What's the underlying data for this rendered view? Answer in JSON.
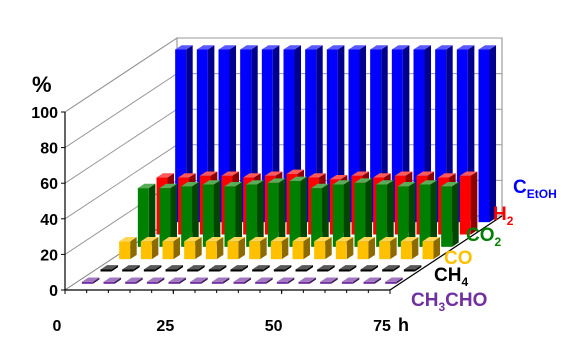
{
  "chart_data": {
    "type": "bar",
    "style": "3d-depth",
    "title": "",
    "ylabel": "%",
    "xlabel": "",
    "x_unit_label": "h",
    "x_ticks": [
      "0",
      "25",
      "50",
      "75"
    ],
    "y_ticks": [
      "0",
      "20",
      "40",
      "60",
      "80",
      "100"
    ],
    "ylim": [
      0,
      100
    ],
    "xlim": [
      0,
      75
    ],
    "grid": true,
    "legend_placement": "right, as series labels along depth axis",
    "x": [
      3,
      8,
      13,
      18,
      23,
      28,
      33,
      38,
      43,
      48,
      53,
      58,
      63,
      68,
      73
    ],
    "series": [
      {
        "name": "CH3CHO",
        "color": "#7030A0",
        "values": [
          1,
          1,
          1,
          1,
          1,
          1,
          1,
          1,
          1,
          1,
          1,
          1,
          1,
          1,
          1
        ]
      },
      {
        "name": "CH4",
        "color": "#000000",
        "values": [
          1,
          1,
          1,
          1,
          1,
          1,
          1,
          1,
          1,
          1,
          1,
          1,
          1,
          1,
          1
        ]
      },
      {
        "name": "CO",
        "color": "#FFC000",
        "values": [
          10,
          10,
          10,
          10,
          10,
          10,
          10,
          10,
          10,
          10,
          10,
          10,
          10,
          10,
          10
        ]
      },
      {
        "name": "CO2",
        "color": "#008000",
        "values": [
          33,
          33,
          34,
          35,
          34,
          35,
          36,
          37,
          33,
          35,
          36,
          35,
          34,
          35,
          34
        ]
      },
      {
        "name": "H2",
        "color": "#FF0000",
        "values": [
          32,
          32,
          33,
          33,
          32,
          33,
          34,
          32,
          31,
          33,
          32,
          33,
          33,
          32,
          33
        ]
      },
      {
        "name": "CEtOH",
        "color": "#0000FF",
        "values": [
          97,
          97,
          97,
          97,
          97,
          97,
          97,
          97,
          97,
          97,
          97,
          97,
          97,
          97,
          97
        ]
      }
    ],
    "series_labels": [
      {
        "main": "C",
        "sub": "EtOH",
        "color": "#0000FF"
      },
      {
        "main": "H",
        "sub": "2",
        "color": "#FF0000"
      },
      {
        "main": "CO",
        "sub": "2",
        "color": "#008000"
      },
      {
        "main": "CO",
        "sub": "",
        "color": "#FFC000"
      },
      {
        "main": "CH",
        "sub": "4",
        "color": "#000000"
      },
      {
        "main": "CH",
        "sub": "3",
        "rest": "CHO",
        "color": "#7030A0"
      }
    ]
  }
}
